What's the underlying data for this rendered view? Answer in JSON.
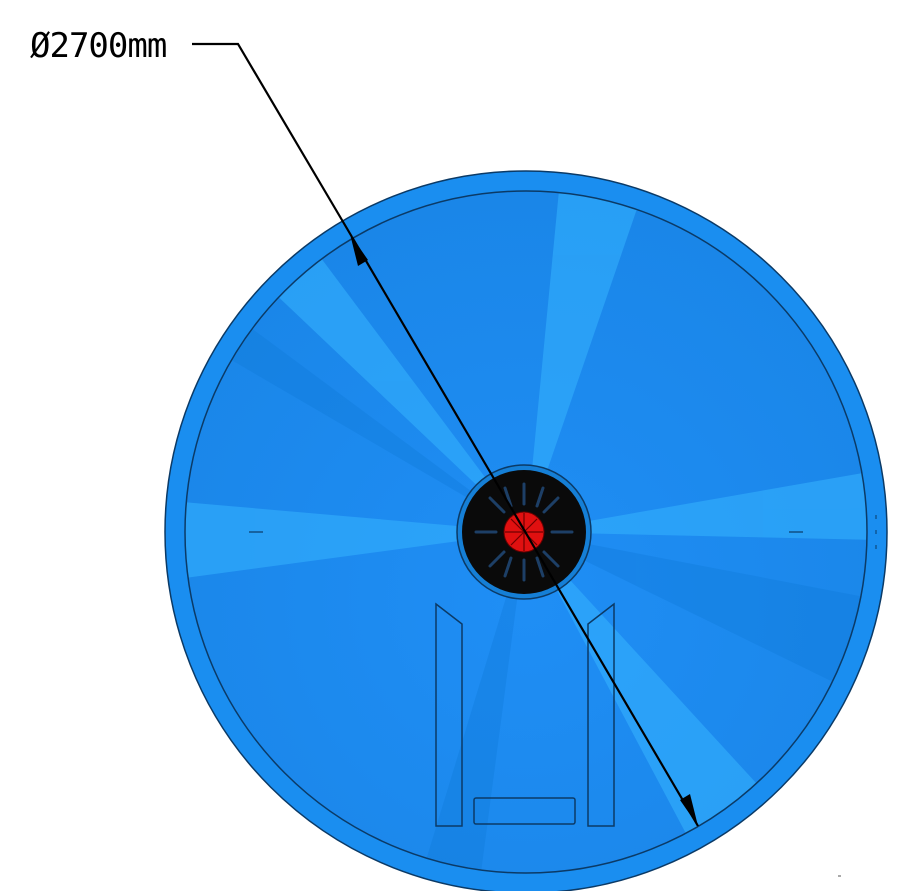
{
  "dimension": {
    "label": "Ø2700mm"
  },
  "colors": {
    "tank_body": "#1a8ff0",
    "tank_highlight": "#2fb0ff",
    "outline": "#0b3a66",
    "hub": "#0a0a0a",
    "core": "#e01010",
    "leader": "#000000"
  }
}
